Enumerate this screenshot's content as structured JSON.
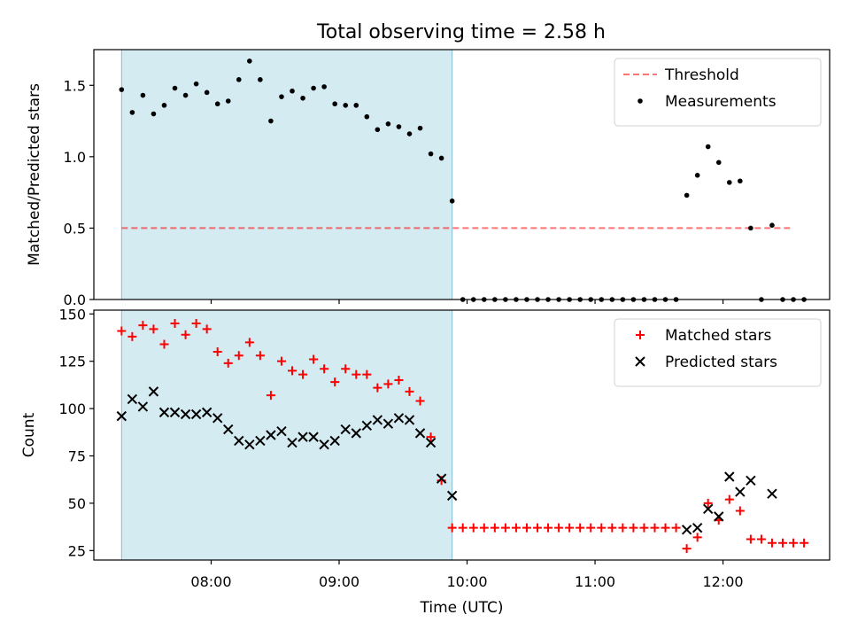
{
  "figure": {
    "title": "Total observing time = 2.58 h"
  },
  "chart_data": [
    {
      "type": "scatter",
      "ylabel": "Matched/Predicted stars",
      "xlabel": "",
      "ylim": [
        0,
        1.75
      ],
      "yticks": [
        0.0,
        0.5,
        1.0,
        1.5
      ],
      "ytick_labels": [
        "0.0",
        "0.5",
        "1.0",
        "1.5"
      ],
      "xlim": [
        "07:05",
        "12:50"
      ],
      "xticks": [
        "08:00",
        "09:00",
        "10:00",
        "11:00",
        "12:00"
      ],
      "shaded_span": [
        "07:18",
        "09:53"
      ],
      "shade_color": "#add8e6",
      "legend_position": "top-right",
      "threshold": {
        "name": "Threshold",
        "value": 0.5,
        "x_range": [
          "07:18",
          "12:33"
        ],
        "color": "#ff0000",
        "style": "dashed"
      },
      "series": [
        {
          "name": "Measurements",
          "marker": "dot",
          "color": "#000000",
          "points": [
            [
              "07:18",
              1.47
            ],
            [
              "07:23",
              1.31
            ],
            [
              "07:28",
              1.43
            ],
            [
              "07:33",
              1.3
            ],
            [
              "07:38",
              1.36
            ],
            [
              "07:43",
              1.48
            ],
            [
              "07:48",
              1.43
            ],
            [
              "07:53",
              1.51
            ],
            [
              "07:58",
              1.45
            ],
            [
              "08:03",
              1.37
            ],
            [
              "08:08",
              1.39
            ],
            [
              "08:13",
              1.54
            ],
            [
              "08:18",
              1.67
            ],
            [
              "08:23",
              1.54
            ],
            [
              "08:28",
              1.25
            ],
            [
              "08:33",
              1.42
            ],
            [
              "08:38",
              1.46
            ],
            [
              "08:43",
              1.41
            ],
            [
              "08:48",
              1.48
            ],
            [
              "08:53",
              1.49
            ],
            [
              "08:58",
              1.37
            ],
            [
              "09:03",
              1.36
            ],
            [
              "09:08",
              1.36
            ],
            [
              "09:13",
              1.28
            ],
            [
              "09:18",
              1.19
            ],
            [
              "09:23",
              1.23
            ],
            [
              "09:28",
              1.21
            ],
            [
              "09:33",
              1.16
            ],
            [
              "09:38",
              1.2
            ],
            [
              "09:43",
              1.02
            ],
            [
              "09:48",
              0.99
            ],
            [
              "09:53",
              0.69
            ],
            [
              "09:58",
              0.0
            ],
            [
              "10:03",
              0.0
            ],
            [
              "10:08",
              0.0
            ],
            [
              "10:13",
              0.0
            ],
            [
              "10:18",
              0.0
            ],
            [
              "10:23",
              0.0
            ],
            [
              "10:28",
              0.0
            ],
            [
              "10:33",
              0.0
            ],
            [
              "10:38",
              0.0
            ],
            [
              "10:43",
              0.0
            ],
            [
              "10:48",
              0.0
            ],
            [
              "10:53",
              0.0
            ],
            [
              "10:58",
              0.0
            ],
            [
              "11:03",
              0.0
            ],
            [
              "11:08",
              0.0
            ],
            [
              "11:13",
              0.0
            ],
            [
              "11:18",
              0.0
            ],
            [
              "11:23",
              0.0
            ],
            [
              "11:28",
              0.0
            ],
            [
              "11:33",
              0.0
            ],
            [
              "11:38",
              0.0
            ],
            [
              "11:43",
              0.73
            ],
            [
              "11:48",
              0.87
            ],
            [
              "11:53",
              1.07
            ],
            [
              "11:58",
              0.96
            ],
            [
              "12:03",
              0.82
            ],
            [
              "12:08",
              0.83
            ],
            [
              "12:13",
              0.5
            ],
            [
              "12:18",
              0.0
            ],
            [
              "12:23",
              0.52
            ],
            [
              "12:28",
              0.0
            ],
            [
              "12:33",
              0.0
            ],
            [
              "12:38",
              0.0
            ]
          ]
        }
      ]
    },
    {
      "type": "scatter",
      "ylabel": "Count",
      "xlabel": "Time (UTC)",
      "ylim": [
        20,
        152
      ],
      "yticks": [
        25,
        50,
        75,
        100,
        125,
        150
      ],
      "ytick_labels": [
        "25",
        "50",
        "75",
        "100",
        "125",
        "150"
      ],
      "xlim": [
        "07:05",
        "12:50"
      ],
      "xticks": [
        "08:00",
        "09:00",
        "10:00",
        "11:00",
        "12:00"
      ],
      "xtick_labels": [
        "08:00",
        "09:00",
        "10:00",
        "11:00",
        "12:00"
      ],
      "shaded_span": [
        "07:18",
        "09:53"
      ],
      "shade_color": "#add8e6",
      "legend_position": "top-right",
      "series": [
        {
          "name": "Matched stars",
          "marker": "plus",
          "color": "#ff0000",
          "points": [
            [
              "07:18",
              141
            ],
            [
              "07:23",
              138
            ],
            [
              "07:28",
              144
            ],
            [
              "07:33",
              142
            ],
            [
              "07:38",
              134
            ],
            [
              "07:43",
              145
            ],
            [
              "07:48",
              139
            ],
            [
              "07:53",
              145
            ],
            [
              "07:58",
              142
            ],
            [
              "08:03",
              130
            ],
            [
              "08:08",
              124
            ],
            [
              "08:13",
              128
            ],
            [
              "08:18",
              135
            ],
            [
              "08:23",
              128
            ],
            [
              "08:28",
              107
            ],
            [
              "08:33",
              125
            ],
            [
              "08:38",
              120
            ],
            [
              "08:43",
              118
            ],
            [
              "08:48",
              126
            ],
            [
              "08:53",
              121
            ],
            [
              "08:58",
              114
            ],
            [
              "09:03",
              121
            ],
            [
              "09:08",
              118
            ],
            [
              "09:13",
              118
            ],
            [
              "09:18",
              111
            ],
            [
              "09:23",
              113
            ],
            [
              "09:28",
              115
            ],
            [
              "09:33",
              109
            ],
            [
              "09:38",
              104
            ],
            [
              "09:43",
              85
            ],
            [
              "09:48",
              62
            ],
            [
              "09:53",
              37
            ],
            [
              "09:58",
              37
            ],
            [
              "10:03",
              37
            ],
            [
              "10:08",
              37
            ],
            [
              "10:13",
              37
            ],
            [
              "10:18",
              37
            ],
            [
              "10:23",
              37
            ],
            [
              "10:28",
              37
            ],
            [
              "10:33",
              37
            ],
            [
              "10:38",
              37
            ],
            [
              "10:43",
              37
            ],
            [
              "10:48",
              37
            ],
            [
              "10:53",
              37
            ],
            [
              "10:58",
              37
            ],
            [
              "11:03",
              37
            ],
            [
              "11:08",
              37
            ],
            [
              "11:13",
              37
            ],
            [
              "11:18",
              37
            ],
            [
              "11:23",
              37
            ],
            [
              "11:28",
              37
            ],
            [
              "11:33",
              37
            ],
            [
              "11:38",
              37
            ],
            [
              "11:43",
              26
            ],
            [
              "11:48",
              32
            ],
            [
              "11:53",
              50
            ],
            [
              "11:58",
              41
            ],
            [
              "12:03",
              52
            ],
            [
              "12:08",
              46
            ],
            [
              "12:13",
              31
            ],
            [
              "12:18",
              31
            ],
            [
              "12:23",
              29
            ],
            [
              "12:28",
              29
            ],
            [
              "12:33",
              29
            ],
            [
              "12:38",
              29
            ]
          ]
        },
        {
          "name": "Predicted stars",
          "marker": "x",
          "color": "#000000",
          "points": [
            [
              "07:18",
              96
            ],
            [
              "07:23",
              105
            ],
            [
              "07:28",
              101
            ],
            [
              "07:33",
              109
            ],
            [
              "07:38",
              98
            ],
            [
              "07:43",
              98
            ],
            [
              "07:48",
              97
            ],
            [
              "07:53",
              97
            ],
            [
              "07:58",
              98
            ],
            [
              "08:03",
              95
            ],
            [
              "08:08",
              89
            ],
            [
              "08:13",
              83
            ],
            [
              "08:18",
              81
            ],
            [
              "08:23",
              83
            ],
            [
              "08:28",
              86
            ],
            [
              "08:33",
              88
            ],
            [
              "08:38",
              82
            ],
            [
              "08:43",
              85
            ],
            [
              "08:48",
              85
            ],
            [
              "08:53",
              81
            ],
            [
              "08:58",
              83
            ],
            [
              "09:03",
              89
            ],
            [
              "09:08",
              87
            ],
            [
              "09:13",
              91
            ],
            [
              "09:18",
              94
            ],
            [
              "09:23",
              92
            ],
            [
              "09:28",
              95
            ],
            [
              "09:33",
              94
            ],
            [
              "09:38",
              87
            ],
            [
              "09:43",
              82
            ],
            [
              "09:48",
              63
            ],
            [
              "09:53",
              54
            ],
            [
              "11:43",
              36
            ],
            [
              "11:48",
              37
            ],
            [
              "11:53",
              47
            ],
            [
              "11:58",
              43
            ],
            [
              "12:03",
              64
            ],
            [
              "12:08",
              56
            ],
            [
              "12:13",
              62
            ],
            [
              "12:23",
              55
            ]
          ]
        }
      ]
    }
  ]
}
